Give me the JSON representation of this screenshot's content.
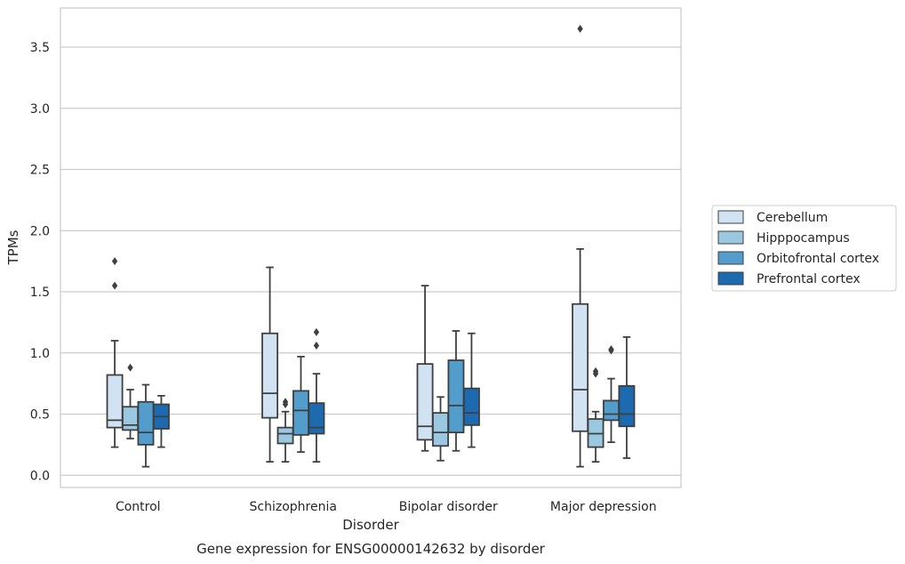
{
  "chart_data": {
    "type": "box",
    "xlabel": "Disorder",
    "ylabel": "TPMs",
    "caption": "Gene expression for ENSG00000142632 by disorder",
    "ylim": [
      -0.1,
      3.82
    ],
    "yticks": [
      "0.0",
      "0.5",
      "1.0",
      "1.5",
      "2.0",
      "2.5",
      "3.0",
      "3.5"
    ],
    "grid": "horizontal",
    "legend_position": "right",
    "categories": [
      "Control",
      "Schizophrenia",
      "Bipolar disorder",
      "Major depression"
    ],
    "series": [
      {
        "name": "Cerebellum",
        "color": "#d1e3f3",
        "boxes": [
          {
            "whislo": 0.23,
            "q1": 0.39,
            "med": 0.45,
            "q3": 0.82,
            "whishi": 1.1,
            "fliers": [
              1.55,
              1.75
            ]
          },
          {
            "whislo": 0.11,
            "q1": 0.47,
            "med": 0.67,
            "q3": 1.16,
            "whishi": 1.7,
            "fliers": []
          },
          {
            "whislo": 0.2,
            "q1": 0.29,
            "med": 0.4,
            "q3": 0.91,
            "whishi": 1.55,
            "fliers": []
          },
          {
            "whislo": 0.07,
            "q1": 0.36,
            "med": 0.7,
            "q3": 1.4,
            "whishi": 1.85,
            "fliers": [
              3.65
            ]
          }
        ]
      },
      {
        "name": "Hipppocampus",
        "color": "#9ac8e0",
        "boxes": [
          {
            "whislo": 0.3,
            "q1": 0.37,
            "med": 0.41,
            "q3": 0.56,
            "whishi": 0.7,
            "fliers": [
              0.88
            ]
          },
          {
            "whislo": 0.11,
            "q1": 0.26,
            "med": 0.34,
            "q3": 0.39,
            "whishi": 0.52,
            "fliers": [
              0.58,
              0.6
            ]
          },
          {
            "whislo": 0.12,
            "q1": 0.24,
            "med": 0.35,
            "q3": 0.51,
            "whishi": 0.64,
            "fliers": []
          },
          {
            "whislo": 0.11,
            "q1": 0.23,
            "med": 0.34,
            "q3": 0.46,
            "whishi": 0.52,
            "fliers": [
              0.83,
              0.85
            ]
          }
        ]
      },
      {
        "name": "Orbitofrontal cortex",
        "color": "#529dcc",
        "boxes": [
          {
            "whislo": 0.07,
            "q1": 0.25,
            "med": 0.35,
            "q3": 0.6,
            "whishi": 0.74,
            "fliers": []
          },
          {
            "whislo": 0.19,
            "q1": 0.33,
            "med": 0.53,
            "q3": 0.69,
            "whishi": 0.97,
            "fliers": []
          },
          {
            "whislo": 0.2,
            "q1": 0.35,
            "med": 0.57,
            "q3": 0.94,
            "whishi": 1.18,
            "fliers": []
          },
          {
            "whislo": 0.27,
            "q1": 0.45,
            "med": 0.5,
            "q3": 0.61,
            "whishi": 0.79,
            "fliers": [
              1.02,
              1.03
            ]
          }
        ]
      },
      {
        "name": "Prefrontal cortex",
        "color": "#1c6bb0",
        "boxes": [
          {
            "whislo": 0.23,
            "q1": 0.38,
            "med": 0.48,
            "q3": 0.58,
            "whishi": 0.65,
            "fliers": []
          },
          {
            "whislo": 0.11,
            "q1": 0.34,
            "med": 0.39,
            "q3": 0.59,
            "whishi": 0.83,
            "fliers": [
              1.06,
              1.17
            ]
          },
          {
            "whislo": 0.23,
            "q1": 0.41,
            "med": 0.51,
            "q3": 0.71,
            "whishi": 1.16,
            "fliers": []
          },
          {
            "whislo": 0.14,
            "q1": 0.4,
            "med": 0.5,
            "q3": 0.73,
            "whishi": 1.13,
            "fliers": []
          }
        ]
      }
    ]
  }
}
